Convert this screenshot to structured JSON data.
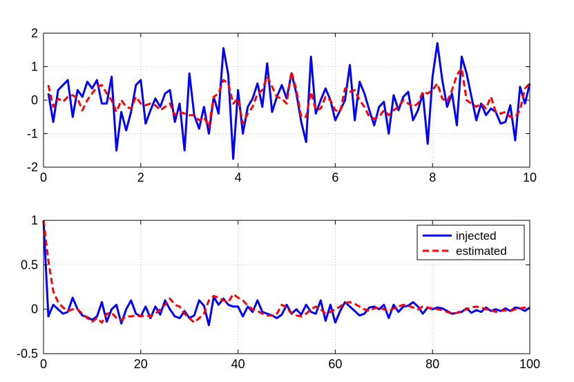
{
  "chart_data": [
    {
      "type": "line",
      "xlim": [
        0,
        10
      ],
      "ylim": [
        -2,
        2
      ],
      "x_ticks": [
        0,
        2,
        4,
        6,
        8,
        10
      ],
      "y_ticks": [
        2,
        1,
        0,
        -1,
        -2
      ],
      "x_tick_labels": [
        "0",
        "2",
        "4",
        "6",
        "8",
        "10"
      ],
      "y_tick_labels": [
        "2",
        "1",
        "0",
        "-1",
        "-2"
      ],
      "grid": true,
      "legend": false,
      "series": [
        {
          "color": "#0000ff",
          "style": "solid",
          "x": [
            0.1,
            0.2,
            0.3,
            0.4,
            0.5,
            0.6,
            0.7,
            0.8,
            0.9,
            1.0,
            1.1,
            1.2,
            1.3,
            1.4,
            1.5,
            1.6,
            1.7,
            1.8,
            1.9,
            2.0,
            2.1,
            2.2,
            2.3,
            2.4,
            2.5,
            2.6,
            2.7,
            2.8,
            2.9,
            3.0,
            3.1,
            3.2,
            3.3,
            3.4,
            3.5,
            3.6,
            3.7,
            3.8,
            3.9,
            4.0,
            4.1,
            4.2,
            4.3,
            4.4,
            4.5,
            4.6,
            4.7,
            4.8,
            4.9,
            5.0,
            5.1,
            5.2,
            5.3,
            5.4,
            5.5,
            5.6,
            5.7,
            5.8,
            5.9,
            6.0,
            6.1,
            6.2,
            6.3,
            6.4,
            6.5,
            6.6,
            6.7,
            6.8,
            6.9,
            7.0,
            7.1,
            7.2,
            7.3,
            7.4,
            7.5,
            7.6,
            7.7,
            7.8,
            7.9,
            8.0,
            8.1,
            8.2,
            8.3,
            8.4,
            8.5,
            8.6,
            8.7,
            8.8,
            8.9,
            9.0,
            9.1,
            9.2,
            9.3,
            9.4,
            9.5,
            9.6,
            9.7,
            9.8,
            9.9,
            10.0
          ],
          "y": [
            0.2,
            -0.65,
            0.3,
            0.45,
            0.6,
            -0.5,
            0.3,
            0.1,
            0.55,
            0.35,
            0.6,
            -0.1,
            -0.1,
            0.7,
            -1.5,
            -0.35,
            -0.9,
            -0.35,
            0.45,
            0.6,
            -0.7,
            -0.3,
            0.05,
            -0.2,
            0.2,
            0.3,
            -0.65,
            -0.1,
            -1.5,
            0.8,
            -0.45,
            -0.85,
            -0.2,
            -1.0,
            0.1,
            -0.4,
            1.55,
            0.75,
            -1.75,
            0.3,
            -1.0,
            -0.2,
            0.05,
            0.5,
            -0.2,
            1.1,
            -0.35,
            0.1,
            0.45,
            0.05,
            0.8,
            0.2,
            -0.65,
            -1.25,
            1.3,
            -0.4,
            0.0,
            0.35,
            0.0,
            -0.6,
            -0.3,
            0.0,
            1.05,
            -0.6,
            0.55,
            0.2,
            -0.3,
            -0.75,
            -0.2,
            -0.05,
            -1.0,
            0.15,
            -0.3,
            0.1,
            0.25,
            -0.6,
            -0.3,
            0.2,
            -1.3,
            0.7,
            1.7,
            0.6,
            -0.2,
            0.2,
            -0.75,
            1.3,
            0.8,
            0.1,
            -0.6,
            -0.1,
            -0.45,
            -0.25,
            -0.35,
            -0.7,
            -0.65,
            -0.15,
            -1.2,
            0.4,
            -0.1,
            0.5
          ]
        },
        {
          "color": "#ff0000",
          "style": "dashed",
          "x": [
            0.1,
            0.2,
            0.3,
            0.4,
            0.5,
            0.6,
            0.7,
            0.8,
            0.9,
            1.0,
            1.1,
            1.2,
            1.3,
            1.4,
            1.5,
            1.6,
            1.7,
            1.8,
            1.9,
            2.0,
            2.1,
            2.2,
            2.3,
            2.4,
            2.5,
            2.6,
            2.7,
            2.8,
            2.9,
            3.0,
            3.1,
            3.2,
            3.3,
            3.4,
            3.5,
            3.6,
            3.7,
            3.8,
            3.9,
            4.0,
            4.1,
            4.2,
            4.3,
            4.4,
            4.5,
            4.6,
            4.7,
            4.8,
            4.9,
            5.0,
            5.1,
            5.2,
            5.3,
            5.4,
            5.5,
            5.6,
            5.7,
            5.8,
            5.9,
            6.0,
            6.1,
            6.2,
            6.3,
            6.4,
            6.5,
            6.6,
            6.7,
            6.8,
            6.9,
            7.0,
            7.1,
            7.2,
            7.3,
            7.4,
            7.5,
            7.6,
            7.7,
            7.8,
            7.9,
            8.0,
            8.1,
            8.2,
            8.3,
            8.4,
            8.5,
            8.6,
            8.7,
            8.8,
            8.9,
            9.0,
            9.1,
            9.2,
            9.3,
            9.4,
            9.5,
            9.6,
            9.7,
            9.8,
            9.9,
            10.0
          ],
          "y": [
            0.45,
            -0.2,
            0.05,
            -0.05,
            0.1,
            0.15,
            0.05,
            -0.3,
            0.0,
            0.2,
            0.4,
            0.45,
            0.2,
            0.0,
            -0.35,
            0.0,
            -0.2,
            -0.25,
            0.1,
            -0.1,
            -0.15,
            -0.1,
            -0.15,
            -0.3,
            -0.2,
            -0.1,
            -0.45,
            -0.35,
            -0.4,
            -0.45,
            -0.45,
            -0.6,
            -0.5,
            -0.8,
            0.1,
            0.2,
            0.6,
            0.5,
            -0.1,
            0.05,
            -0.7,
            -0.4,
            -0.2,
            0.2,
            0.3,
            0.7,
            0.4,
            0.1,
            0.05,
            -0.1,
            0.85,
            0.3,
            -0.5,
            -0.5,
            0.25,
            -0.3,
            -0.25,
            0.1,
            0.0,
            -0.3,
            -0.35,
            0.35,
            0.25,
            0.3,
            0.0,
            -0.2,
            -0.5,
            -0.55,
            -0.5,
            -0.3,
            -0.45,
            -0.3,
            -0.2,
            0.0,
            -0.1,
            -0.2,
            -0.1,
            0.25,
            0.2,
            0.3,
            0.5,
            0.05,
            -0.05,
            0.3,
            0.75,
            0.95,
            0.0,
            -0.1,
            -0.2,
            -0.1,
            -0.25,
            0.1,
            -0.35,
            -0.4,
            -0.35,
            -0.5,
            -0.5,
            -0.3,
            0.35,
            0.5
          ]
        }
      ]
    },
    {
      "type": "line",
      "xlim": [
        0,
        100
      ],
      "ylim": [
        -0.5,
        1
      ],
      "x_ticks": [
        0,
        20,
        40,
        60,
        80,
        100
      ],
      "y_ticks": [
        1,
        0.5,
        0,
        -0.5
      ],
      "x_tick_labels": [
        "0",
        "20",
        "40",
        "60",
        "80",
        "100"
      ],
      "y_tick_labels": [
        "1",
        "0.5",
        "0",
        "-0.5"
      ],
      "grid": true,
      "legend": "top-right",
      "series": [
        {
          "name": "injected",
          "color": "#0000ff",
          "style": "solid",
          "x": [
            0,
            1,
            2,
            3,
            4,
            5,
            6,
            7,
            8,
            9,
            10,
            11,
            12,
            13,
            14,
            15,
            16,
            17,
            18,
            19,
            20,
            21,
            22,
            23,
            24,
            25,
            26,
            27,
            28,
            29,
            30,
            31,
            32,
            33,
            34,
            35,
            36,
            37,
            38,
            39,
            40,
            41,
            42,
            43,
            44,
            45,
            46,
            47,
            48,
            49,
            50,
            51,
            52,
            53,
            54,
            55,
            56,
            57,
            58,
            59,
            60,
            61,
            62,
            63,
            64,
            65,
            66,
            67,
            68,
            69,
            70,
            71,
            72,
            73,
            74,
            75,
            76,
            77,
            78,
            79,
            80,
            81,
            82,
            83,
            84,
            85,
            86,
            87,
            88,
            89,
            90,
            91,
            92,
            93,
            94,
            95,
            96,
            97,
            98,
            99,
            100
          ],
          "y": [
            1.0,
            -0.08,
            0.05,
            0.0,
            -0.05,
            -0.03,
            0.13,
            0.0,
            -0.07,
            -0.09,
            -0.12,
            -0.08,
            0.08,
            -0.14,
            0.0,
            0.05,
            -0.16,
            0.0,
            0.1,
            -0.05,
            -0.08,
            0.03,
            -0.1,
            0.03,
            -0.06,
            0.1,
            0.0,
            -0.08,
            -0.1,
            -0.02,
            -0.1,
            -0.07,
            0.1,
            0.04,
            -0.18,
            0.14,
            0.05,
            0.12,
            0.05,
            0.03,
            0.03,
            -0.08,
            0.03,
            -0.03,
            0.1,
            -0.03,
            -0.05,
            -0.07,
            -0.1,
            -0.06,
            0.05,
            -0.05,
            0.0,
            -0.06,
            0.05,
            -0.03,
            -0.05,
            0.1,
            -0.13,
            0.05,
            -0.15,
            -0.02,
            0.08,
            0.03,
            -0.02,
            -0.07,
            -0.05,
            0.02,
            0.03,
            0.0,
            0.05,
            -0.1,
            0.05,
            -0.03,
            0.03,
            0.04,
            0.08,
            0.03,
            -0.05,
            0.02,
            0.0,
            0.02,
            0.01,
            -0.02,
            -0.05,
            -0.04,
            -0.03,
            0.01,
            -0.04,
            -0.01,
            -0.03,
            0.02,
            -0.02,
            0.0,
            -0.02,
            0.01,
            -0.02,
            0.02,
            0.01,
            -0.02,
            0.02
          ]
        },
        {
          "name": "estimated",
          "color": "#ff0000",
          "style": "dashed",
          "x": [
            0,
            1,
            2,
            3,
            4,
            5,
            6,
            7,
            8,
            9,
            10,
            11,
            12,
            13,
            14,
            15,
            16,
            17,
            18,
            19,
            20,
            21,
            22,
            23,
            24,
            25,
            26,
            27,
            28,
            29,
            30,
            31,
            32,
            33,
            34,
            35,
            36,
            37,
            38,
            39,
            40,
            41,
            42,
            43,
            44,
            45,
            46,
            47,
            48,
            49,
            50,
            51,
            52,
            53,
            54,
            55,
            56,
            57,
            58,
            59,
            60,
            61,
            62,
            63,
            64,
            65,
            66,
            67,
            68,
            69,
            70,
            71,
            72,
            73,
            74,
            75,
            76,
            77,
            78,
            79,
            80,
            81,
            82,
            83,
            84,
            85,
            86,
            87,
            88,
            89,
            90,
            91,
            92,
            93,
            94,
            95,
            96,
            97,
            98,
            99,
            100
          ],
          "y": [
            1.0,
            0.55,
            0.2,
            0.08,
            0.02,
            -0.02,
            0.0,
            0.0,
            -0.05,
            -0.1,
            -0.14,
            -0.1,
            -0.15,
            -0.05,
            -0.04,
            -0.1,
            -0.12,
            -0.08,
            -0.08,
            -0.07,
            -0.08,
            -0.07,
            -0.08,
            -0.05,
            0.0,
            0.05,
            0.12,
            0.05,
            0.03,
            -0.05,
            -0.1,
            -0.15,
            -0.1,
            -0.05,
            0.1,
            0.15,
            0.13,
            0.1,
            0.08,
            0.17,
            0.13,
            0.1,
            0.04,
            0.0,
            -0.02,
            -0.05,
            -0.07,
            -0.07,
            -0.05,
            0.05,
            0.02,
            -0.05,
            -0.07,
            -0.08,
            -0.05,
            0.0,
            0.03,
            0.0,
            -0.05,
            -0.03,
            0.0,
            0.03,
            0.07,
            0.08,
            0.06,
            0.03,
            0.0,
            -0.02,
            0.01,
            0.02,
            0.0,
            -0.02,
            0.01,
            0.03,
            0.05,
            0.04,
            0.02,
            0.0,
            0.03,
            0.02,
            0.01,
            0.0,
            -0.01,
            -0.03,
            -0.05,
            -0.04,
            -0.02,
            0.0,
            0.02,
            0.03,
            0.02,
            0.0,
            -0.01,
            -0.03,
            -0.02,
            -0.01,
            -0.02,
            0.0,
            0.01,
            0.02,
            0.02
          ]
        }
      ]
    }
  ]
}
